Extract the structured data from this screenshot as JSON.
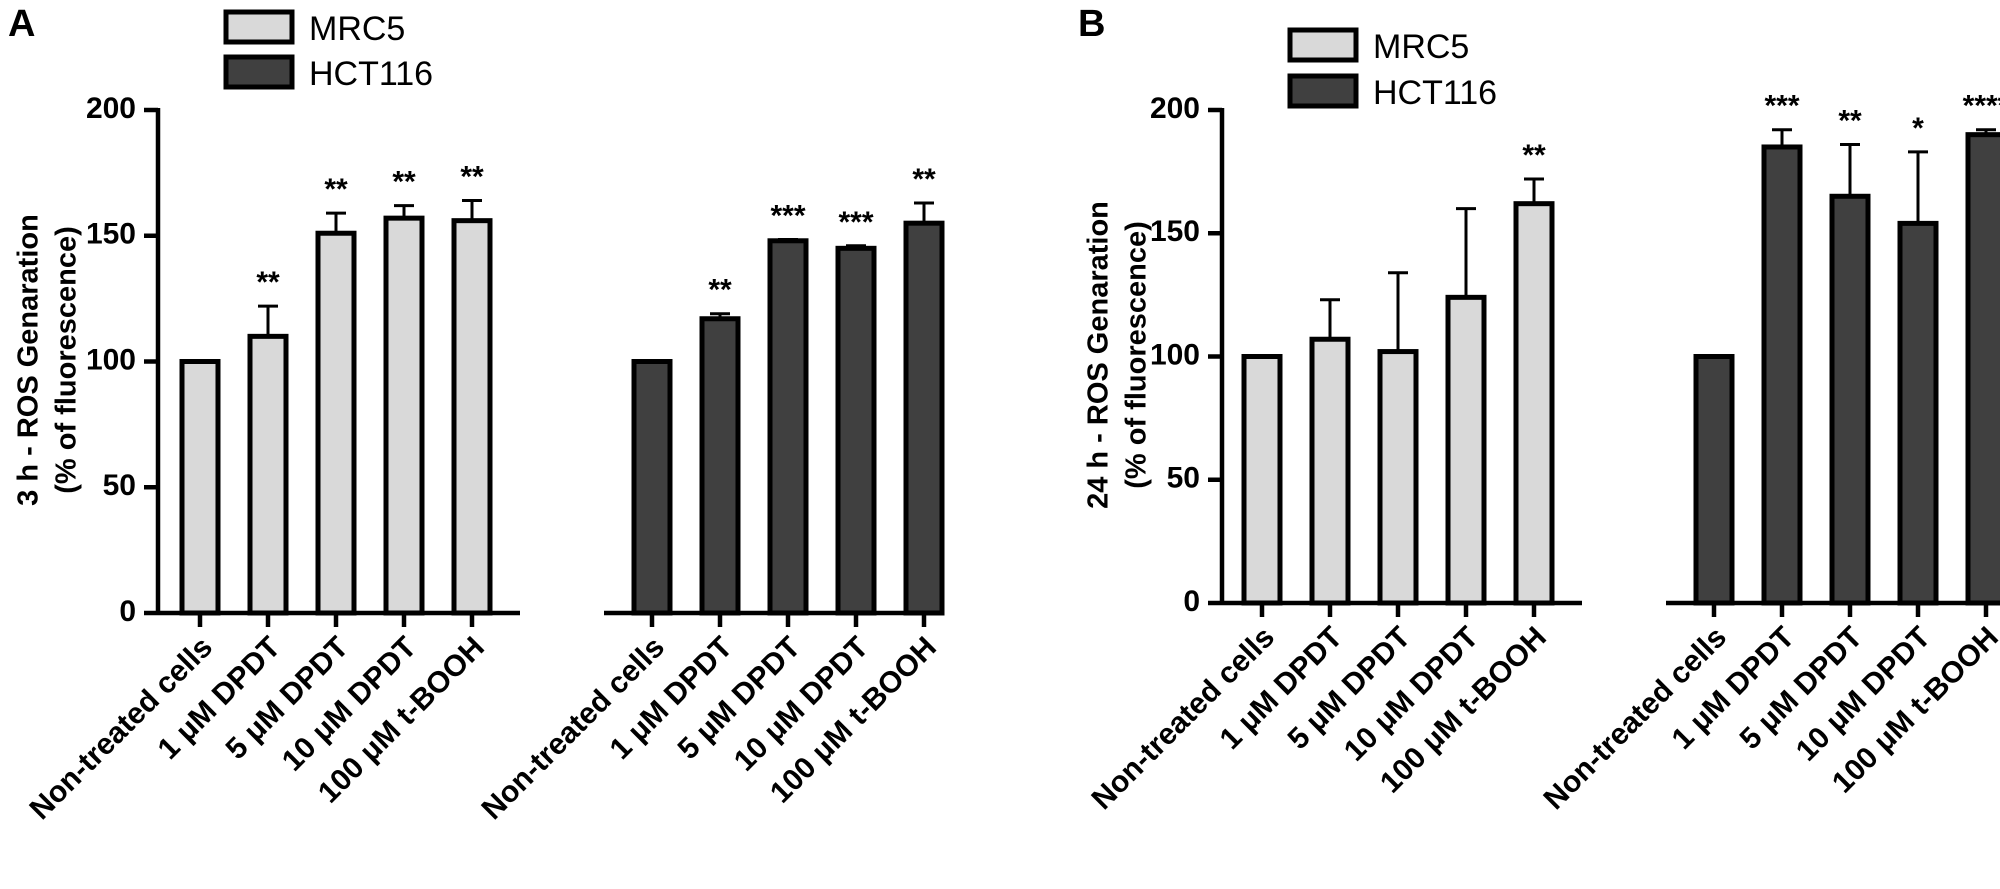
{
  "colors": {
    "MRC5": "#d9d9d9",
    "HCT116": "#404040"
  },
  "chart_data": [
    {
      "panel": "A",
      "type": "bar",
      "ylabel_line1": "3 h - ROS Genaration",
      "ylabel_line2": "(% of fluorescence)",
      "ylim": [
        0,
        200
      ],
      "yticks": [
        "0",
        "50",
        "100",
        "150",
        "200"
      ],
      "legend": [
        "MRC5",
        "HCT116"
      ],
      "categories": [
        "Non-treated cells",
        "1 μM DPDT",
        "5 μM DPDT",
        "10 μM DPDT",
        "100 μM t-BOOH"
      ],
      "series": [
        {
          "name": "MRC5",
          "values": [
            100,
            110,
            151,
            157,
            156
          ],
          "errors": [
            0,
            12,
            8,
            5,
            8
          ],
          "significance": [
            "",
            "**",
            "**",
            "**",
            "**"
          ]
        },
        {
          "name": "HCT116",
          "values": [
            100,
            117,
            148,
            145,
            155
          ],
          "errors": [
            0,
            2,
            0.5,
            1,
            8
          ],
          "significance": [
            "",
            "**",
            "***",
            "***",
            "**"
          ]
        }
      ]
    },
    {
      "panel": "B",
      "type": "bar",
      "ylabel_line1": "24 h - ROS Genaration",
      "ylabel_line2": "(% of fluorescence)",
      "ylim": [
        0,
        200
      ],
      "yticks": [
        "0",
        "50",
        "100",
        "150",
        "200"
      ],
      "legend": [
        "MRC5",
        "HCT116"
      ],
      "categories": [
        "Non-treated cells",
        "1 μM DPDT",
        "5 μM DPDT",
        "10 μM DPDT",
        "100 μM t-BOOH"
      ],
      "series": [
        {
          "name": "MRC5",
          "values": [
            100,
            107,
            102,
            124,
            162
          ],
          "errors": [
            0,
            16,
            32,
            36,
            10
          ],
          "significance": [
            "",
            "",
            "",
            "",
            "**"
          ]
        },
        {
          "name": "HCT116",
          "values": [
            100,
            185,
            165,
            154,
            190
          ],
          "errors": [
            0,
            7,
            21,
            29,
            2
          ],
          "significance": [
            "",
            "***",
            "**",
            "*",
            "****"
          ]
        }
      ]
    }
  ]
}
